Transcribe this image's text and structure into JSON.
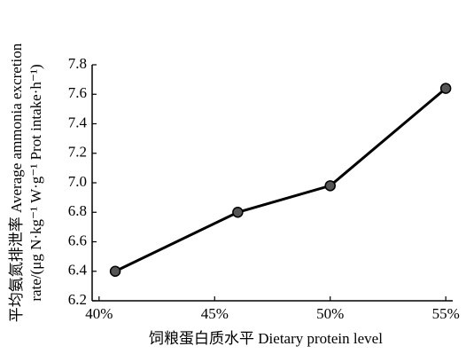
{
  "chart_data": {
    "type": "line",
    "xlabel": "饲粮蛋白质水平 Dietary protein level",
    "ylabel": [
      "平均氨氮排泄率 Average ammonia excretion",
      "rate/(μg N·kg⁻¹ W·g⁻¹ Prot intake·h⁻¹)"
    ],
    "x": [
      40.7,
      46,
      50,
      55
    ],
    "series": [
      {
        "color": "#000000",
        "values": [
          6.4,
          6.8,
          6.98,
          7.64
        ]
      }
    ],
    "xlim": [
      39.7,
      55.3
    ],
    "xticks": [
      {
        "value": 40,
        "label": "40%"
      },
      {
        "value": 45,
        "label": "45%"
      },
      {
        "value": 50,
        "label": "50%"
      },
      {
        "value": 55,
        "label": "55%"
      }
    ],
    "ylim": [
      6.2,
      7.8
    ],
    "yticks": [
      6.2,
      6.4,
      6.6,
      6.8,
      {
        "value": 7,
        "label": "7.0"
      },
      7.2,
      7.4,
      7.6,
      7.8
    ],
    "grid": false
  }
}
